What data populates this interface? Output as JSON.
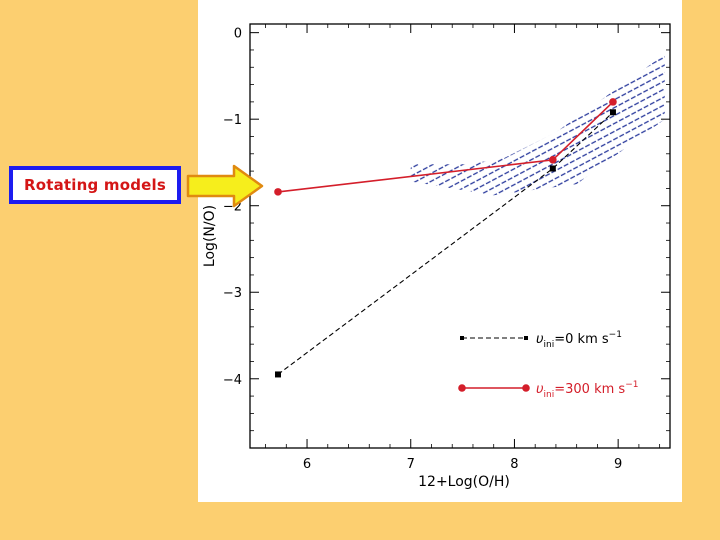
{
  "callout": {
    "label": "Rotating models",
    "box_border_color": "#1c1cf0",
    "text_color": "#d41616",
    "arrow_icon": "right-arrow-icon",
    "arrow_fill": "#f6ee1c",
    "arrow_outline": "#e08a10"
  },
  "slide": {
    "background": "#fccf70"
  },
  "chart_data": {
    "type": "line",
    "title": "",
    "xlabel": "12+Log(O/H)",
    "ylabel": "Log(N/O)",
    "xlim": [
      5.45,
      9.5
    ],
    "ylim": [
      -4.8,
      0.1
    ],
    "xticks": [
      6,
      7,
      8,
      9
    ],
    "yticks": [
      0,
      -1,
      -2,
      -3,
      -4
    ],
    "ytick_labels": [
      "0",
      "−1",
      "−2",
      "−3",
      "−4"
    ],
    "legend_position": "bottom-right",
    "series": [
      {
        "name": "υini=0 km s⁻¹",
        "legend_main": "υ",
        "legend_sub": "ini",
        "legend_rest": "=0  km  s",
        "legend_sup": "−1",
        "color": "#000000",
        "style": "dashed",
        "marker": "square",
        "x": [
          5.72,
          8.37,
          8.95
        ],
        "y": [
          -3.95,
          -1.57,
          -0.92
        ]
      },
      {
        "name": "υini=300 km s⁻¹",
        "legend_main": "υ",
        "legend_sub": "ini",
        "legend_rest": "=300  km  s",
        "legend_sup": "−1",
        "color": "#d41e2a",
        "style": "solid",
        "marker": "circle",
        "x": [
          5.72,
          8.37,
          8.95
        ],
        "y": [
          -1.84,
          -1.47,
          -0.8
        ]
      }
    ],
    "observed_region": {
      "fill": "hatched",
      "color": "#2a3a9c",
      "polygon_x": [
        7.0,
        7.55,
        7.9,
        8.4,
        9.45,
        9.45,
        9.2,
        8.6,
        7.8,
        7.0
      ],
      "polygon_y": [
        -1.52,
        -1.52,
        -1.45,
        -1.15,
        -0.25,
        -1.0,
        -1.22,
        -1.75,
        -1.88,
        -1.72
      ]
    }
  }
}
